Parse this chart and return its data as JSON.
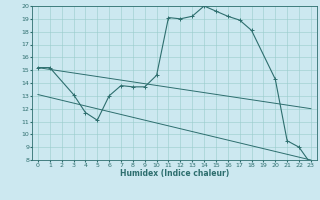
{
  "title": "",
  "xlabel": "Humidex (Indice chaleur)",
  "ylabel": "",
  "background_color": "#cce8f0",
  "grid_color": "#99cccc",
  "line_color": "#2d6e6e",
  "xlim": [
    -0.5,
    23.5
  ],
  "ylim": [
    8,
    20
  ],
  "xticks": [
    0,
    1,
    2,
    3,
    4,
    5,
    6,
    7,
    8,
    9,
    10,
    11,
    12,
    13,
    14,
    15,
    16,
    17,
    18,
    19,
    20,
    21,
    22,
    23
  ],
  "yticks": [
    8,
    9,
    10,
    11,
    12,
    13,
    14,
    15,
    16,
    17,
    18,
    19,
    20
  ],
  "series": [
    {
      "x": [
        0,
        1,
        3,
        4,
        5,
        6,
        7,
        8,
        9,
        10,
        11,
        12,
        13,
        14,
        15,
        16,
        17,
        18,
        20,
        21,
        22,
        23
      ],
      "y": [
        15.2,
        15.2,
        13.1,
        11.7,
        11.1,
        13.0,
        13.8,
        13.7,
        13.7,
        14.6,
        19.1,
        19.0,
        19.2,
        20.0,
        19.6,
        19.2,
        18.9,
        18.1,
        14.3,
        9.5,
        9.0,
        7.7
      ]
    },
    {
      "x": [
        0,
        23
      ],
      "y": [
        15.2,
        12.0
      ]
    },
    {
      "x": [
        0,
        23
      ],
      "y": [
        13.1,
        8.0
      ]
    }
  ]
}
